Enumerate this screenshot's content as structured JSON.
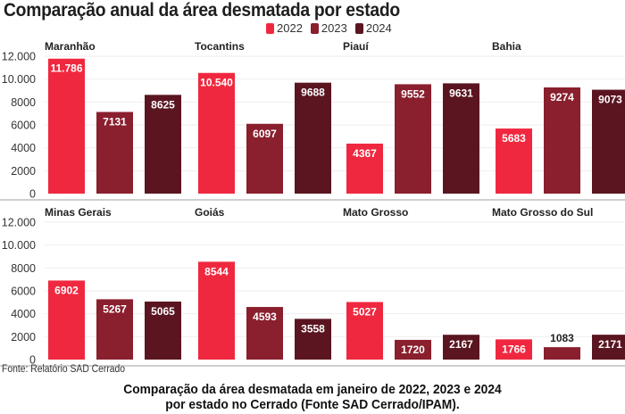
{
  "header": {
    "title": "Comparação anual da área desmatada por estado"
  },
  "legend": [
    {
      "label": "2022",
      "color": "#f0283f"
    },
    {
      "label": "2023",
      "color": "#8a1f2d"
    },
    {
      "label": "2024",
      "color": "#5a1520"
    }
  ],
  "footer": {
    "source": "Fonte: Relatório SAD Cerrado",
    "caption_line1": "Comparação da área desmatada em janeiro de 2022, 2023 e 2024",
    "caption_line2": "por estado no Cerrado (Fonte SAD Cerrado/IPAM)."
  },
  "chart_data": {
    "type": "bar",
    "title": "Comparação anual da área desmatada por estado",
    "xlabel": "",
    "ylabel": "",
    "ylim": [
      0,
      12000
    ],
    "yticks": [
      0,
      2000,
      4000,
      6000,
      8000,
      10000,
      12000
    ],
    "ytick_labels": [
      "0",
      "2000",
      "4000",
      "6000",
      "8000",
      "10.000",
      "12.000"
    ],
    "categories": [
      "2022",
      "2023",
      "2024"
    ],
    "legend_position": "top-right",
    "grid": true,
    "panels": [
      {
        "state": "Maranhão",
        "values": [
          11786,
          7131,
          8625
        ],
        "labels": [
          "11.786",
          "7131",
          "8625"
        ]
      },
      {
        "state": "Tocantins",
        "values": [
          10540,
          6097,
          9688
        ],
        "labels": [
          "10.540",
          "6097",
          "9688"
        ]
      },
      {
        "state": "Piauí",
        "values": [
          4367,
          9552,
          9631
        ],
        "labels": [
          "4367",
          "9552",
          "9631"
        ]
      },
      {
        "state": "Bahia",
        "values": [
          5683,
          9274,
          9073
        ],
        "labels": [
          "5683",
          "9274",
          "9073"
        ]
      },
      {
        "state": "Minas Gerais",
        "values": [
          6902,
          5267,
          5065
        ],
        "labels": [
          "6902",
          "5267",
          "5065"
        ]
      },
      {
        "state": "Goiás",
        "values": [
          8544,
          4593,
          3558
        ],
        "labels": [
          "8544",
          "4593",
          "3558"
        ]
      },
      {
        "state": "Mato Grosso",
        "values": [
          5027,
          1720,
          2167
        ],
        "labels": [
          "5027",
          "1720",
          "2167"
        ]
      },
      {
        "state": "Mato Grosso do Sul",
        "values": [
          1766,
          1083,
          2171
        ],
        "labels": [
          "1766",
          "1083",
          "2171"
        ]
      }
    ],
    "series": [
      {
        "name": "2022",
        "color": "#f0283f"
      },
      {
        "name": "2023",
        "color": "#8a1f2d"
      },
      {
        "name": "2024",
        "color": "#5a1520"
      }
    ]
  }
}
